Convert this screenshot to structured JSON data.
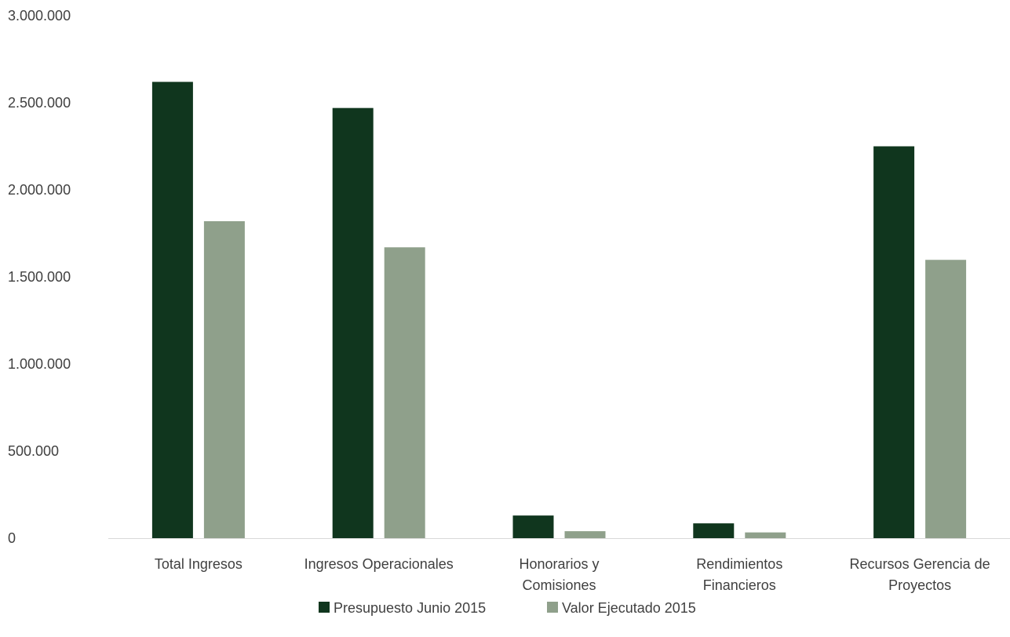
{
  "chart_data": {
    "type": "bar",
    "categories": [
      [
        "Total Ingresos"
      ],
      [
        "Ingresos Operacionales"
      ],
      [
        "Honorarios y",
        "Comisiones"
      ],
      [
        "Rendimientos",
        "Financieros"
      ],
      [
        "Recursos Gerencia de",
        "Proyectos"
      ]
    ],
    "series": [
      {
        "name": "Presupuesto Junio 2015",
        "color": "#10361e",
        "values": [
          2620000,
          2470000,
          130000,
          85000,
          2250000
        ]
      },
      {
        "name": "Valor Ejecutado 2015",
        "color": "#8fa08b",
        "values": [
          1820000,
          1670000,
          40000,
          33000,
          1598000
        ]
      }
    ],
    "ylim": [
      0,
      3000000
    ],
    "yticks": [
      0,
      500000,
      1000000,
      1500000,
      2000000,
      2500000,
      3000000
    ],
    "ytick_labels": [
      "0",
      "500.000",
      "1.000.000",
      "1.500.000",
      "2.000.000",
      "2.500.000",
      "3.000.000"
    ],
    "grid": false,
    "legend_position": "bottom"
  }
}
